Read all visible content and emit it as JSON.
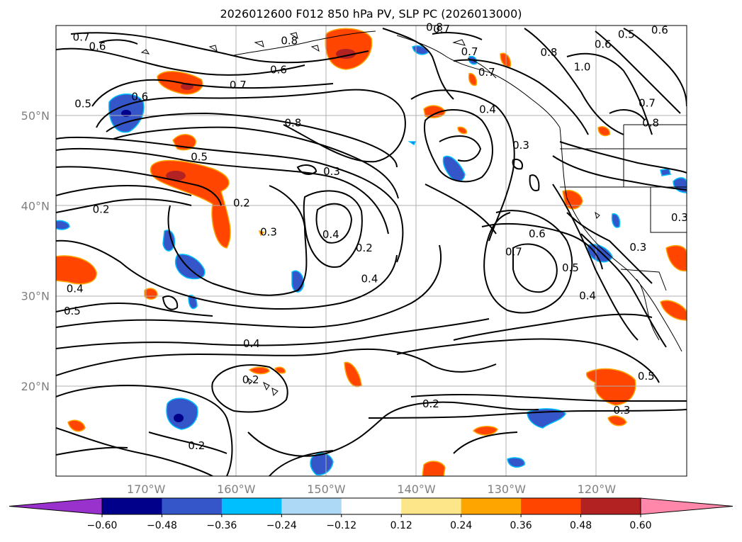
{
  "title": "2026012600 F012 850 hPa PV, SLP PC (2026013000)",
  "map": {
    "lon_range": [
      -180,
      -110
    ],
    "lat_range": [
      10,
      60
    ],
    "lon_ticks": [
      {
        "value": -170,
        "label": "170°W"
      },
      {
        "value": -160,
        "label": "160°W"
      },
      {
        "value": -150,
        "label": "150°W"
      },
      {
        "value": -140,
        "label": "140°W"
      },
      {
        "value": -130,
        "label": "130°W"
      },
      {
        "value": -120,
        "label": "120°W"
      }
    ],
    "lat_ticks": [
      {
        "value": 20,
        "label": "20°N"
      },
      {
        "value": 30,
        "label": "30°N"
      },
      {
        "value": 40,
        "label": "40°N"
      },
      {
        "value": 50,
        "label": "50°N"
      }
    ],
    "contour_labels": [
      {
        "text": "0.7",
        "lon": -177.2,
        "lat": 58.7
      },
      {
        "text": "0.6",
        "lon": -175.4,
        "lat": 57.7
      },
      {
        "text": "0.6",
        "lon": -155.3,
        "lat": 55.1
      },
      {
        "text": "0.7",
        "lon": -159.8,
        "lat": 53.4
      },
      {
        "text": "0.5",
        "lon": -177.0,
        "lat": 51.3
      },
      {
        "text": "0.6",
        "lon": -170.7,
        "lat": 52.1
      },
      {
        "text": "0.8",
        "lon": -153.7,
        "lat": 49.2
      },
      {
        "text": "0.5",
        "lon": -164.1,
        "lat": 45.4
      },
      {
        "text": "0.3",
        "lon": -149.4,
        "lat": 43.8
      },
      {
        "text": "0.2",
        "lon": -159.4,
        "lat": 40.3
      },
      {
        "text": "0.2",
        "lon": -175.0,
        "lat": 39.6
      },
      {
        "text": "0.3",
        "lon": -156.4,
        "lat": 37.1
      },
      {
        "text": "0.4",
        "lon": -149.5,
        "lat": 36.8
      },
      {
        "text": "0.2",
        "lon": -145.8,
        "lat": 35.3
      },
      {
        "text": "0.4",
        "lon": -145.2,
        "lat": 31.9
      },
      {
        "text": "0.4",
        "lon": -177.9,
        "lat": 30.8
      },
      {
        "text": "0.5",
        "lon": -178.2,
        "lat": 28.3
      },
      {
        "text": "0.4",
        "lon": -158.3,
        "lat": 24.7
      },
      {
        "text": "0.2",
        "lon": -158.4,
        "lat": 20.7
      },
      {
        "text": "0.2",
        "lon": -164.4,
        "lat": 13.4
      },
      {
        "text": "0.2",
        "lon": -138.4,
        "lat": 18.0
      },
      {
        "text": "0.3",
        "lon": -128.4,
        "lat": 46.7
      },
      {
        "text": "0.4",
        "lon": -132.1,
        "lat": 50.7
      },
      {
        "text": "0.6",
        "lon": -126.6,
        "lat": 36.9
      },
      {
        "text": "0.7",
        "lon": -129.2,
        "lat": 34.9
      },
      {
        "text": "0.5",
        "lon": -122.9,
        "lat": 33.1
      },
      {
        "text": "0.4",
        "lon": -121.0,
        "lat": 30.0
      },
      {
        "text": "0.3",
        "lon": -115.4,
        "lat": 35.4
      },
      {
        "text": "0.8",
        "lon": -125.3,
        "lat": 57.0
      },
      {
        "text": "0.7",
        "lon": -134.1,
        "lat": 57.1
      },
      {
        "text": "0.7",
        "lon": -132.2,
        "lat": 54.8
      },
      {
        "text": "1.0",
        "lon": -121.6,
        "lat": 55.4
      },
      {
        "text": "0.6",
        "lon": -119.3,
        "lat": 57.9
      },
      {
        "text": "0.5",
        "lon": -116.7,
        "lat": 59.0
      },
      {
        "text": "0.6",
        "lon": -113.0,
        "lat": 59.5
      },
      {
        "text": "0.7",
        "lon": -114.4,
        "lat": 51.4
      },
      {
        "text": "0.8",
        "lon": -114.0,
        "lat": 49.2
      },
      {
        "text": "0.3",
        "lon": -110.8,
        "lat": 38.7
      },
      {
        "text": "0.3",
        "lon": -117.2,
        "lat": 17.3
      },
      {
        "text": "0.5",
        "lon": -114.5,
        "lat": 21.1
      },
      {
        "text": "0.8",
        "lon": -154.1,
        "lat": 58.3
      },
      {
        "text": "0.7",
        "lon": -137.2,
        "lat": 59.6
      },
      {
        "text": "0.8",
        "lon": -138.0,
        "lat": 59.8
      }
    ]
  },
  "colorbar": {
    "levels": [
      -0.6,
      -0.48,
      -0.36,
      -0.24,
      -0.12,
      0.12,
      0.24,
      0.36,
      0.48,
      0.6
    ],
    "tick_labels": [
      "−0.60",
      "−0.48",
      "−0.36",
      "−0.24",
      "−0.12",
      "0.12",
      "0.24",
      "0.36",
      "0.48",
      "0.60"
    ],
    "colors": [
      "#9932cc",
      "#00008b",
      "#3456c8",
      "#00bfff",
      "#add8f6",
      "#ffffff",
      "#fde68a",
      "#ffa500",
      "#ff4500",
      "#b22222",
      "#ff88aa"
    ]
  }
}
